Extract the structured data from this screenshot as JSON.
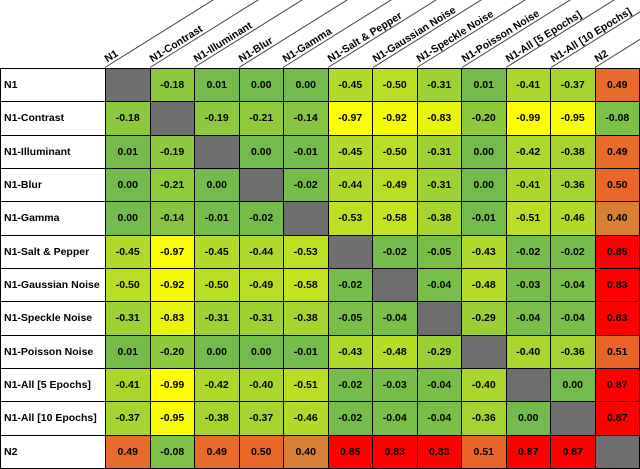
{
  "chart_data": {
    "type": "heatmap",
    "description": "Correlation matrix of N1 network variants and N2, colored green (near zero) to yellow (negative) to orange/red (positive); diagonal cells are gray and blank",
    "row_labels": [
      "N1",
      "N1-Contrast",
      "N1-Illuminant",
      "N1-Blur",
      "N1-Gamma",
      "N1-Salt & Pepper",
      "N1-Gaussian Noise",
      "N1-Speckle Noise",
      "N1-Poisson Noise",
      "N1-All [5 Epochs]",
      "N1-All [10 Epochs]",
      "N2"
    ],
    "col_labels": [
      "N1",
      "N1-Contrast",
      "N1-Illuminant",
      "N1-Blur",
      "N1-Gamma",
      "N1-Salt & Pepper",
      "N1-Gaussian Noise",
      "N1-Speckle Noise",
      "N1-Poisson Noise",
      "N1-All [5 Epochs]",
      "N1-All [10 Epochs]",
      "N2"
    ],
    "values": [
      [
        null,
        -0.18,
        0.01,
        0.0,
        0.0,
        -0.45,
        -0.5,
        -0.31,
        0.01,
        -0.41,
        -0.37,
        0.49
      ],
      [
        -0.18,
        null,
        -0.19,
        -0.21,
        -0.14,
        -0.97,
        -0.92,
        -0.83,
        -0.2,
        -0.99,
        -0.95,
        -0.08
      ],
      [
        0.01,
        -0.19,
        null,
        0.0,
        -0.01,
        -0.45,
        -0.5,
        -0.31,
        0.0,
        -0.42,
        -0.38,
        0.49
      ],
      [
        0.0,
        -0.21,
        0.0,
        null,
        -0.02,
        -0.44,
        -0.49,
        -0.31,
        0.0,
        -0.41,
        -0.36,
        0.5
      ],
      [
        0.0,
        -0.14,
        -0.01,
        -0.02,
        null,
        -0.53,
        -0.58,
        -0.38,
        -0.01,
        -0.51,
        -0.46,
        0.4
      ],
      [
        -0.45,
        -0.97,
        -0.45,
        -0.44,
        -0.53,
        null,
        -0.02,
        -0.05,
        -0.43,
        -0.02,
        -0.02,
        0.85
      ],
      [
        -0.5,
        -0.92,
        -0.5,
        -0.49,
        -0.58,
        -0.02,
        null,
        -0.04,
        -0.48,
        -0.03,
        -0.04,
        0.83
      ],
      [
        -0.31,
        -0.83,
        -0.31,
        -0.31,
        -0.38,
        -0.05,
        -0.04,
        null,
        -0.29,
        -0.04,
        -0.04,
        0.83
      ],
      [
        0.01,
        -0.2,
        0.0,
        0.0,
        -0.01,
        -0.43,
        -0.48,
        -0.29,
        null,
        -0.4,
        -0.36,
        0.51
      ],
      [
        -0.41,
        -0.99,
        -0.42,
        -0.4,
        -0.51,
        -0.02,
        -0.03,
        -0.04,
        -0.4,
        null,
        0.0,
        0.87
      ],
      [
        -0.37,
        -0.95,
        -0.38,
        -0.37,
        -0.46,
        -0.02,
        -0.04,
        -0.04,
        -0.36,
        0.0,
        null,
        0.87
      ],
      [
        0.49,
        -0.08,
        0.49,
        0.5,
        0.4,
        0.85,
        0.83,
        0.83,
        0.51,
        0.87,
        0.87,
        null
      ]
    ],
    "value_format": "two_decimals",
    "colors": {
      "green_zero": "#71BC4C",
      "yellow_negative_end": "#FFFF00",
      "orange_positive_mid": "#E57930",
      "red_positive_end": "#FF0000",
      "diagonal_gray": "#6E6E6E",
      "cell_border": "#000000",
      "header_divider": "#4A4A4A",
      "text": "#000000",
      "background": "#FFFFFF"
    },
    "layout": {
      "grid_on": true,
      "legend": "none",
      "column_headers_rotated": true
    }
  }
}
